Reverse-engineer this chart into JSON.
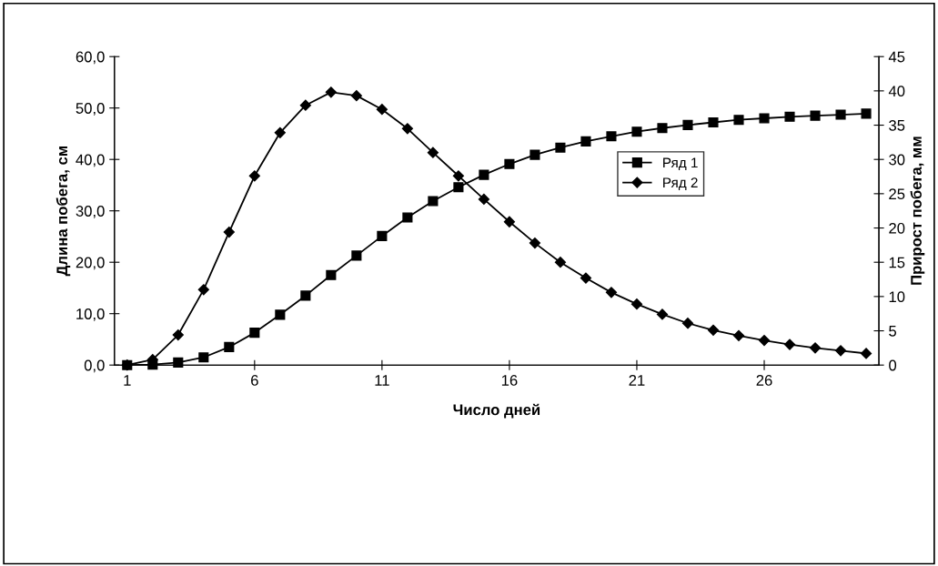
{
  "chart_data": {
    "type": "line",
    "xlabel": "Число дней",
    "ylabel": "Длина побега, см",
    "y2label": "Прирост побега, мм",
    "x": [
      1,
      2,
      3,
      4,
      5,
      6,
      7,
      8,
      9,
      10,
      11,
      12,
      13,
      14,
      15,
      16,
      17,
      18,
      19,
      20,
      21,
      22,
      23,
      24,
      25,
      26,
      27,
      28,
      29,
      30
    ],
    "xlim": [
      0.5,
      30.5
    ],
    "xticks": [
      1,
      6,
      11,
      16,
      21,
      26
    ],
    "ylim": [
      0,
      60
    ],
    "yticks": [
      {
        "value": 0,
        "label": "0,0"
      },
      {
        "value": 10,
        "label": "10,0"
      },
      {
        "value": 20,
        "label": "20,0"
      },
      {
        "value": 30,
        "label": "30,0"
      },
      {
        "value": 40,
        "label": "40,0"
      },
      {
        "value": 50,
        "label": "50,0"
      },
      {
        "value": 60,
        "label": "60,0"
      }
    ],
    "y2lim": [
      0,
      45
    ],
    "y2ticks": [
      0,
      5,
      10,
      15,
      20,
      25,
      30,
      35,
      40,
      45
    ],
    "grid": false,
    "legend": "right",
    "line_style": "solid",
    "series": [
      {
        "name": "Ряд 1",
        "color": "#000000",
        "marker": "square",
        "values": [
          0,
          0.1,
          0.5,
          1.5,
          3.5,
          6.3,
          9.8,
          13.5,
          17.5,
          21.3,
          25.1,
          28.7,
          31.9,
          34.6,
          37.0,
          39.1,
          40.9,
          42.3,
          43.5,
          44.5,
          45.4,
          46.1,
          46.7,
          47.2,
          47.7,
          48.0,
          48.3,
          48.5,
          48.7,
          48.9
        ]
      },
      {
        "name": "Ряд 2",
        "color": "#000000",
        "marker": "diamond",
        "axis": "y2",
        "values": [
          0,
          0.8,
          4.4,
          11.0,
          19.4,
          27.6,
          33.9,
          37.9,
          39.8,
          39.3,
          37.3,
          34.5,
          31.0,
          27.6,
          24.2,
          20.9,
          17.8,
          15.0,
          12.7,
          10.6,
          8.9,
          7.4,
          6.1,
          5.1,
          4.3,
          3.6,
          3.0,
          2.5,
          2.1,
          1.7
        ]
      }
    ]
  }
}
